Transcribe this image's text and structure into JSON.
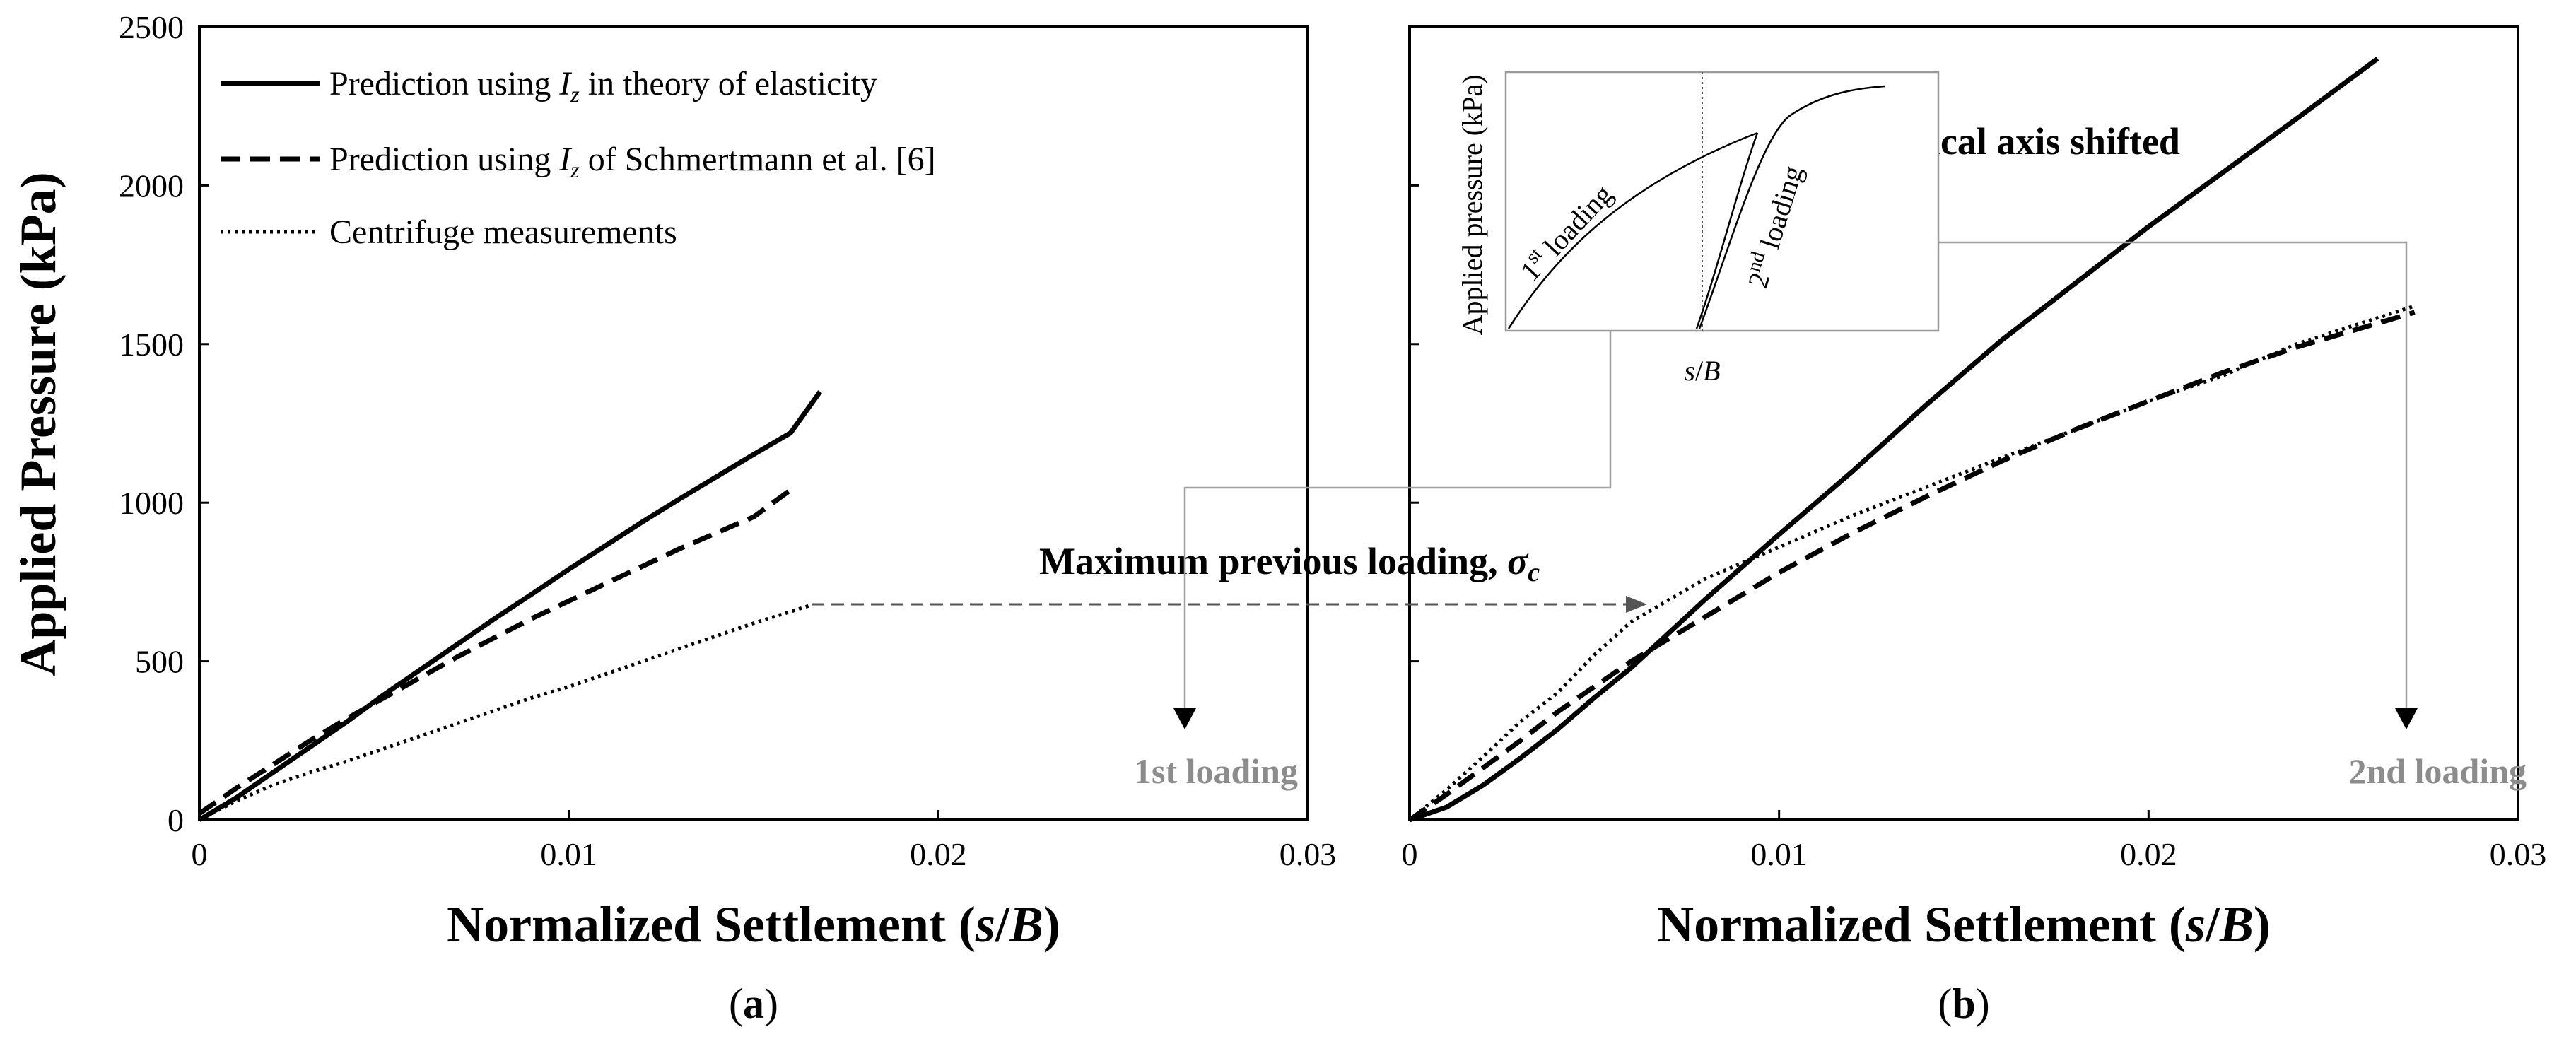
{
  "chart_data": [
    {
      "type": "line",
      "panel_label": "(a)",
      "xlabel_prefix": "Normalized Settlement (",
      "xlabel_var": "s",
      "xlabel_slash": "/",
      "xlabel_var2": "B",
      "xlabel_suffix": ")",
      "ylabel": "Applied Pressure (kPa)",
      "xlim": [
        0,
        0.03
      ],
      "ylim": [
        0,
        2500
      ],
      "x_ticks": [
        "0",
        "0.01",
        "0.02",
        "0.03"
      ],
      "y_ticks": [
        "0",
        "500",
        "1000",
        "1500",
        "2000",
        "2500"
      ],
      "legend": [
        {
          "prefix": "Prediction using ",
          "var": "I",
          "sub": "z",
          "suffix": " in theory of elasticity",
          "style": "solid"
        },
        {
          "prefix": "Prediction using ",
          "var": "I",
          "sub": "z",
          "suffix": " of Schmertmann et al. [6]",
          "style": "dashed"
        },
        {
          "prefix": "Centrifuge measurements",
          "var": "",
          "sub": "",
          "suffix": "",
          "style": "dotted"
        }
      ],
      "series": [
        {
          "name": "Prediction using Iz in theory of elasticity",
          "style": "solid",
          "x": [
            0,
            0.001,
            0.002,
            0.003,
            0.004,
            0.005,
            0.006,
            0.007,
            0.008,
            0.009,
            0.01,
            0.011,
            0.012,
            0.013,
            0.014,
            0.015,
            0.016,
            0.0168
          ],
          "y": [
            0,
            70,
            150,
            230,
            310,
            395,
            475,
            555,
            635,
            712,
            790,
            865,
            940,
            1012,
            1082,
            1152,
            1220,
            1350
          ]
        },
        {
          "name": "Prediction using Iz of Schmertmann et al. [6]",
          "style": "dashed",
          "x": [
            0,
            0.001,
            0.002,
            0.003,
            0.004,
            0.005,
            0.006,
            0.007,
            0.008,
            0.009,
            0.01,
            0.011,
            0.012,
            0.013,
            0.014,
            0.015,
            0.016
          ],
          "y": [
            20,
            100,
            175,
            250,
            320,
            385,
            450,
            515,
            575,
            635,
            690,
            745,
            800,
            855,
            905,
            955,
            1040
          ]
        },
        {
          "name": "Centrifuge measurements",
          "style": "dotted",
          "x": [
            0,
            0.001,
            0.002,
            0.003,
            0.004,
            0.005,
            0.006,
            0.007,
            0.008,
            0.009,
            0.01,
            0.011,
            0.012,
            0.013,
            0.014,
            0.015,
            0.0165
          ],
          "y": [
            0,
            60,
            110,
            150,
            185,
            225,
            265,
            305,
            345,
            385,
            420,
            460,
            500,
            540,
            580,
            620,
            675
          ]
        }
      ],
      "annotation_gray": "1st loading"
    },
    {
      "type": "line",
      "panel_label": "(b)",
      "xlabel_prefix": "Normalized Settlement (",
      "xlabel_var": "s",
      "xlabel_slash": "/",
      "xlabel_var2": "B",
      "xlabel_suffix": ")",
      "xlim": [
        0,
        0.03
      ],
      "ylim": [
        0,
        2500
      ],
      "x_ticks": [
        "0",
        "0.01",
        "0.02",
        "0.03"
      ],
      "series": [
        {
          "name": "Prediction using Iz in theory of elasticity",
          "style": "solid",
          "x": [
            0,
            0.001,
            0.002,
            0.003,
            0.004,
            0.005,
            0.006,
            0.008,
            0.01,
            0.012,
            0.014,
            0.016,
            0.018,
            0.02,
            0.022,
            0.024,
            0.0262
          ],
          "y": [
            0,
            40,
            110,
            195,
            285,
            385,
            480,
            695,
            900,
            1100,
            1310,
            1510,
            1690,
            1870,
            2040,
            2210,
            2400
          ]
        },
        {
          "name": "Prediction using Iz of Schmertmann et al. [6]",
          "style": "dashed",
          "x": [
            0,
            0.001,
            0.002,
            0.003,
            0.004,
            0.005,
            0.006,
            0.008,
            0.01,
            0.012,
            0.014,
            0.016,
            0.018,
            0.02,
            0.022,
            0.024,
            0.0272
          ],
          "y": [
            0,
            80,
            165,
            250,
            340,
            420,
            500,
            640,
            780,
            905,
            1020,
            1130,
            1230,
            1320,
            1410,
            1490,
            1600
          ]
        },
        {
          "name": "Centrifuge measurements",
          "style": "dotted",
          "x": [
            0,
            0.001,
            0.002,
            0.003,
            0.004,
            0.005,
            0.006,
            0.008,
            0.01,
            0.012,
            0.014,
            0.016,
            0.018,
            0.02,
            0.022,
            0.024,
            0.0272
          ],
          "y": [
            0,
            95,
            200,
            310,
            400,
            520,
            625,
            760,
            860,
            960,
            1050,
            1140,
            1230,
            1320,
            1400,
            1500,
            1620
          ]
        }
      ],
      "annotation_bold": "Vertical axis shifted",
      "annotation_gray": "2nd loading",
      "inset": {
        "ylabel": "Applied pressure (kPa)",
        "xlabel_var": "s",
        "xlabel_slash": "/",
        "xlabel_var2": "B",
        "first_loading_pre": "1",
        "first_loading_sup": "st",
        "first_loading_post": " loading",
        "second_loading_pre": "2",
        "second_loading_sup": "nd",
        "second_loading_post": " loading"
      }
    }
  ],
  "shared_annotation": {
    "text": "Maximum previous loading, ",
    "symbol": "σ",
    "symbol_sub": "c"
  }
}
